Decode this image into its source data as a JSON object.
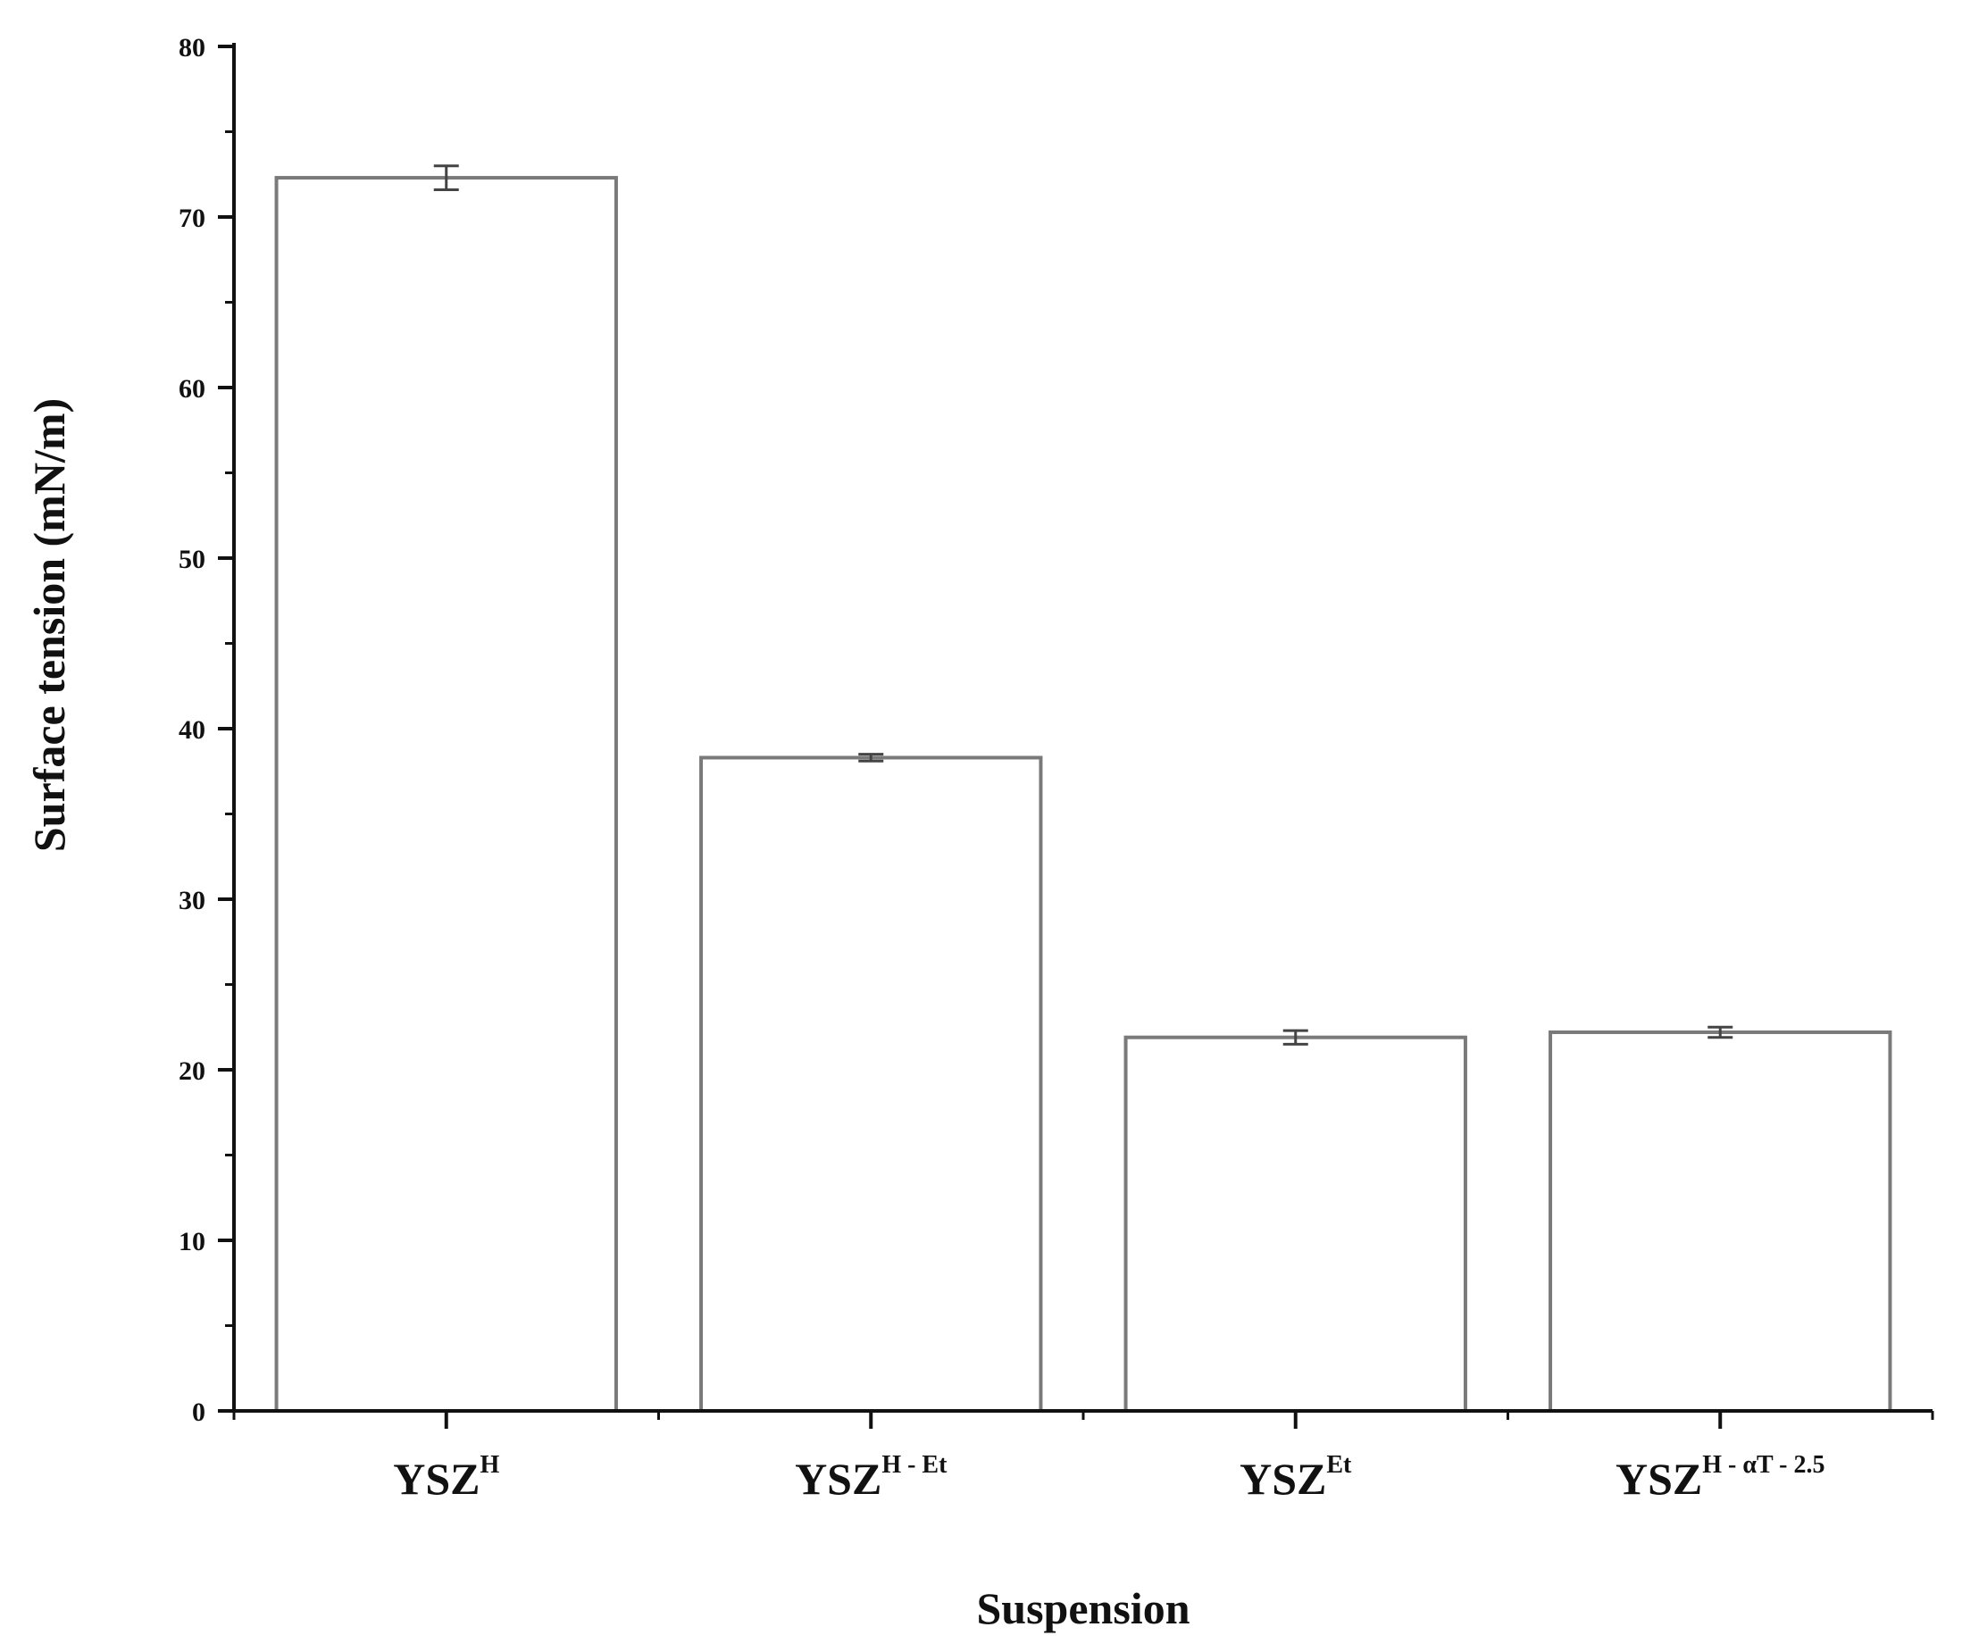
{
  "chart_data": {
    "type": "bar",
    "title": "",
    "xlabel": "Suspension",
    "ylabel": "Surface tension (mN/m)",
    "ylim": [
      0,
      80
    ],
    "yticks": [
      0,
      10,
      20,
      30,
      40,
      50,
      60,
      70,
      80
    ],
    "categories": [
      {
        "base": "YSZ",
        "sup": "H"
      },
      {
        "base": "YSZ",
        "sup": "H - Et"
      },
      {
        "base": "YSZ",
        "sup": "Et"
      },
      {
        "base": "YSZ",
        "sup": "H - αT - 2.5"
      }
    ],
    "values": [
      72.3,
      38.3,
      21.9,
      22.2
    ],
    "errors": [
      0.7,
      0.2,
      0.4,
      0.3
    ],
    "grid": false,
    "legend": "none",
    "colors": {
      "bar_fill": "#ffffff",
      "bar_stroke": "#7a7a7a",
      "axis": "#111111"
    }
  }
}
